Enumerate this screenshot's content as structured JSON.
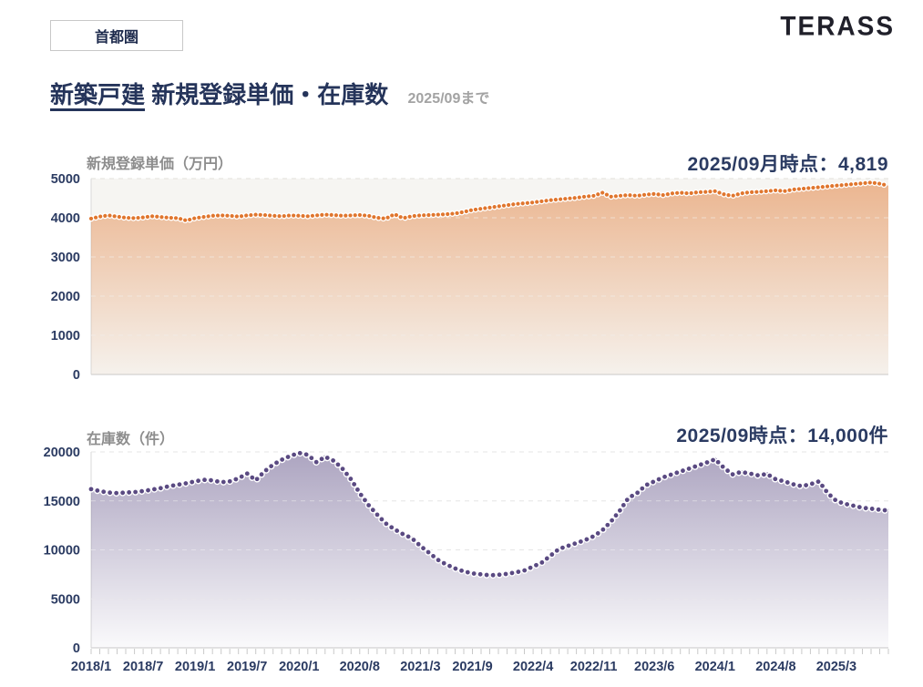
{
  "header": {
    "region": "首都圏",
    "brand": "TERASS"
  },
  "title": {
    "segment": "新築戸建",
    "rest": "新規登録単価・在庫数",
    "period_note": "2025/09まで"
  },
  "colors": {
    "navy": "#2b3b62",
    "orange": "#e0762e",
    "purple": "#5a4a82",
    "label_gray": "#8d8d8d"
  },
  "chart_data": [
    {
      "type": "area",
      "title": "新規登録単価（万円）",
      "annotation": "2025/09月時点：4,819",
      "line_color": "#e0762e",
      "ylim": [
        0,
        5000
      ],
      "y_ticks": [
        0,
        1000,
        2000,
        3000,
        4000,
        5000
      ],
      "x_monthly_start": "2018/1",
      "x_monthly_end": "2025/9",
      "x_tick_labels": [
        "2018/1",
        "2018/7",
        "2019/1",
        "2019/7",
        "2020/1",
        "2020/8",
        "2021/3",
        "2021/9",
        "2022/4",
        "2022/11",
        "2023/6",
        "2024/1",
        "2024/8",
        "2025/3"
      ],
      "x_tick_indices": [
        0,
        6,
        12,
        18,
        24,
        31,
        38,
        44,
        51,
        58,
        65,
        72,
        79,
        86
      ],
      "values": [
        3980,
        4030,
        4060,
        4030,
        4000,
        3990,
        4010,
        4040,
        4020,
        4000,
        3990,
        3930,
        3990,
        4020,
        4050,
        4060,
        4050,
        4030,
        4060,
        4080,
        4070,
        4050,
        4040,
        4060,
        4050,
        4040,
        4060,
        4080,
        4070,
        4050,
        4060,
        4070,
        4050,
        4000,
        3980,
        4090,
        3990,
        4040,
        4060,
        4070,
        4080,
        4090,
        4110,
        4150,
        4200,
        4230,
        4260,
        4290,
        4320,
        4350,
        4370,
        4390,
        4420,
        4450,
        4470,
        4490,
        4510,
        4540,
        4560,
        4640,
        4540,
        4560,
        4580,
        4560,
        4590,
        4610,
        4580,
        4620,
        4640,
        4620,
        4650,
        4660,
        4680,
        4600,
        4560,
        4620,
        4650,
        4660,
        4680,
        4700,
        4680,
        4720,
        4740,
        4760,
        4780,
        4800,
        4820,
        4840,
        4860,
        4880,
        4900,
        4870,
        4819
      ],
      "grid": true,
      "legend": "none"
    },
    {
      "type": "area",
      "title": "在庫数（件）",
      "annotation": "2025/09時点：14,000件",
      "line_color": "#5a4a82",
      "ylim": [
        0,
        20000
      ],
      "y_ticks": [
        0,
        5000,
        10000,
        15000,
        20000
      ],
      "x_monthly_start": "2018/1",
      "x_monthly_end": "2025/9",
      "x_tick_labels": [
        "2018/1",
        "2018/7",
        "2019/1",
        "2019/7",
        "2020/1",
        "2020/8",
        "2021/3",
        "2021/9",
        "2022/4",
        "2022/11",
        "2023/6",
        "2024/1",
        "2024/8",
        "2025/3"
      ],
      "x_tick_indices": [
        0,
        6,
        12,
        18,
        24,
        31,
        38,
        44,
        51,
        58,
        65,
        72,
        79,
        86
      ],
      "values": [
        16200,
        16000,
        15850,
        15800,
        15850,
        15900,
        16000,
        16150,
        16300,
        16500,
        16650,
        16800,
        17000,
        17150,
        17100,
        16900,
        17000,
        17300,
        17800,
        17100,
        18000,
        18700,
        19200,
        19600,
        19900,
        19700,
        18950,
        19500,
        19100,
        18300,
        17200,
        15800,
        14600,
        13600,
        12700,
        12100,
        11600,
        11200,
        10400,
        9700,
        9000,
        8500,
        8100,
        7800,
        7600,
        7500,
        7400,
        7450,
        7550,
        7700,
        7900,
        8300,
        8700,
        9400,
        10100,
        10400,
        10700,
        11000,
        11400,
        12000,
        12900,
        14000,
        15300,
        15800,
        16600,
        17000,
        17400,
        17700,
        18000,
        18300,
        18600,
        18900,
        19250,
        18400,
        17700,
        17950,
        17800,
        17600,
        17750,
        17200,
        17000,
        16700,
        16500,
        16700,
        17000,
        15800,
        15000,
        14700,
        14500,
        14300,
        14200,
        14100,
        14000
      ],
      "grid": true,
      "legend": "none"
    }
  ]
}
